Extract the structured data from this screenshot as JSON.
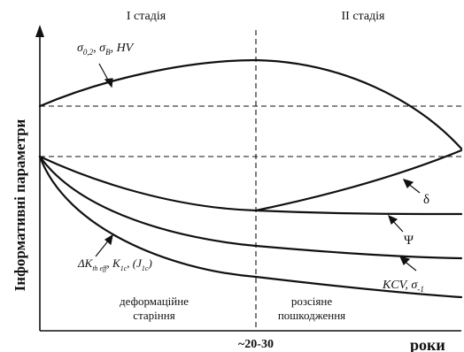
{
  "stage_labels": {
    "stage1": "I стадія",
    "stage2": "II стадія"
  },
  "axis": {
    "ylabel": "Інформативні параметри",
    "xlabel": "роки",
    "x_tick": "~20-30"
  },
  "curve_labels": {
    "strength_hv": "σ0,2, σB, HV",
    "delta": "δ",
    "psi": "Ψ",
    "kcv": "KCV, σ-1",
    "fracture": "ΔKth eff, K1c, (J1c)"
  },
  "region_labels": {
    "left_line1": "деформаційне",
    "left_line2": "старіння",
    "right_line1": "розсіяне",
    "right_line2": "пошкодження"
  },
  "colors": {
    "ink": "#111111",
    "background": "#ffffff"
  }
}
